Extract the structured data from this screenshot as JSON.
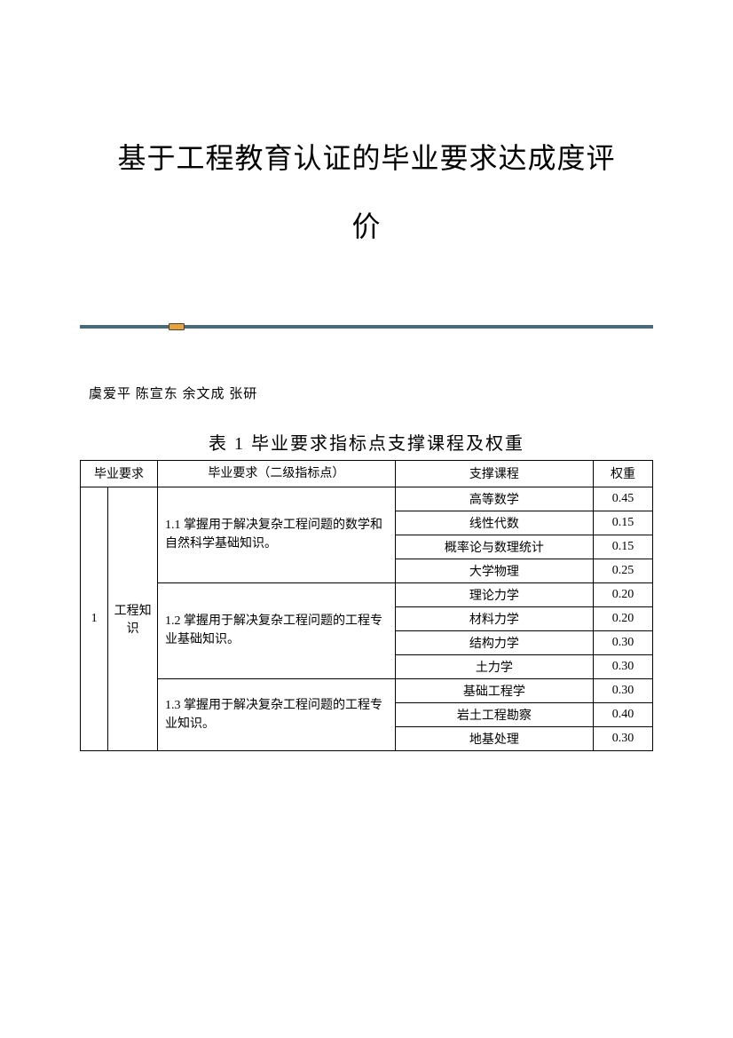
{
  "title_line1": "基于工程教育认证的毕业要求达成度评",
  "title_line2": "价",
  "authors": "虞爱平  陈宣东  余文成  张研",
  "table": {
    "caption": "表 1    毕业要求指标点支撑课程及权重",
    "headers": {
      "requirement": "毕业要求",
      "indicator": "毕业要求（二级指标点）",
      "course": "支撑课程",
      "weight": "权重"
    },
    "group": {
      "index": "1",
      "category": "工程知识",
      "indicators": [
        {
          "text": "1.1 掌握用于解决复杂工程问题的数学和自然科学基础知识。",
          "rows": [
            {
              "course": "高等数学",
              "weight": "0.45"
            },
            {
              "course": "线性代数",
              "weight": "0.15"
            },
            {
              "course": "概率论与数理统计",
              "weight": "0.15"
            },
            {
              "course": "大学物理",
              "weight": "0.25"
            }
          ]
        },
        {
          "text": "1.2 掌握用于解决复杂工程问题的工程专业基础知识。",
          "rows": [
            {
              "course": "理论力学",
              "weight": "0.20"
            },
            {
              "course": "材料力学",
              "weight": "0.20"
            },
            {
              "course": "结构力学",
              "weight": "0.30"
            },
            {
              "course": "土力学",
              "weight": "0.30"
            }
          ]
        },
        {
          "text": "1.3 掌握用于解决复杂工程问题的工程专业知识。",
          "rows": [
            {
              "course": "基础工程学",
              "weight": "0.30"
            },
            {
              "course": "岩土工程勘察",
              "weight": "0.40"
            },
            {
              "course": "地基处理",
              "weight": "0.30"
            }
          ]
        }
      ]
    }
  },
  "colors": {
    "divider": "#4a6a7a",
    "marker": "#e8a23a",
    "border": "#000000",
    "text": "#000000",
    "background": "#ffffff"
  }
}
